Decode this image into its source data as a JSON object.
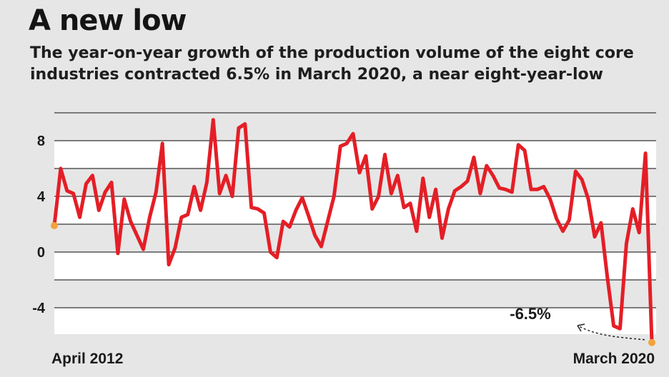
{
  "header": {
    "title": "A new low",
    "subtitle": "The year-on-year growth of the production volume of the eight core industries contracted 6.5% in March 2020, a near eight-year-low"
  },
  "colors": {
    "line": "#e41e26",
    "marker": "#f2a33a",
    "band": "#ffffff",
    "background": "#e6e6e6",
    "grid": "#555555"
  },
  "chart_data": {
    "type": "line",
    "title": "A new low",
    "subtitle": "The year-on-year growth of the production volume of the eight core industries contracted 6.5% in March 2020, a near eight-year-low",
    "x_start_label": "April 2012",
    "x_end_label": "March 2020",
    "yticks": [
      8,
      4,
      0,
      -4
    ],
    "ytick_labels": [
      "8",
      "4",
      "0",
      "-4"
    ],
    "ylim": [
      -6,
      10
    ],
    "grid": true,
    "annotation": {
      "text": "-6.5%",
      "target": "March 2020"
    },
    "series": [
      {
        "values": [
          1.9,
          6.0,
          4.4,
          4.2,
          2.5,
          4.9,
          5.5,
          3.0,
          4.3,
          5.0,
          -0.1,
          3.8,
          2.2,
          1.2,
          0.2,
          2.5,
          4.3,
          7.8,
          -0.9,
          0.3,
          2.5,
          2.7,
          4.7,
          3.0,
          5.0,
          9.5,
          4.2,
          5.5,
          4.0,
          8.9,
          9.2,
          3.2,
          3.1,
          2.8,
          0.0,
          -0.4,
          2.2,
          1.8,
          3.0,
          3.9,
          2.6,
          1.2,
          0.4,
          2.2,
          4.0,
          7.6,
          7.8,
          8.5,
          5.7,
          6.9,
          3.1,
          4.0,
          7.0,
          4.2,
          5.5,
          3.2,
          3.5,
          1.5,
          5.3,
          2.5,
          4.5,
          1.0,
          3.1,
          4.4,
          4.7,
          5.1,
          6.8,
          4.2,
          6.2,
          5.5,
          4.6,
          4.5,
          4.3,
          7.7,
          7.3,
          4.5,
          4.5,
          4.7,
          3.8,
          2.4,
          1.5,
          2.3,
          5.8,
          5.2,
          3.8,
          1.1,
          2.1,
          -1.8,
          -5.3,
          -5.5,
          0.6,
          3.1,
          1.4,
          7.1,
          -6.5
        ]
      }
    ]
  }
}
